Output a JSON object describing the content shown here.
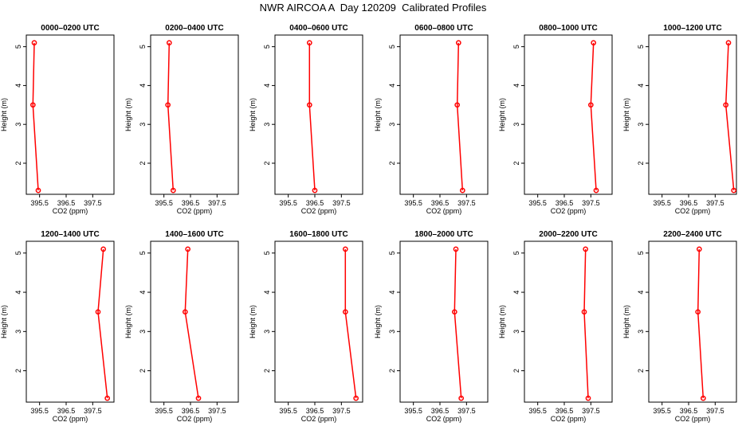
{
  "title": "NWR AIRCOA A  Day 120209  Calibrated Profiles",
  "axes": {
    "xlabel": "CO2 (ppm)",
    "ylabel": "Height (m)",
    "xticks": [
      "395.5",
      "396.5",
      "397.5"
    ],
    "yticks": [
      "2",
      "3",
      "4",
      "5"
    ],
    "xlim": [
      395.0,
      398.3
    ],
    "ylim": [
      1.2,
      5.3
    ]
  },
  "colors": {
    "series": "#ff0000",
    "axis": "#000000"
  },
  "chart_data": [
    {
      "type": "line",
      "title": "0000–0200 UTC",
      "points": [
        {
          "x": 395.3,
          "y": 5.1
        },
        {
          "x": 395.25,
          "y": 3.5
        },
        {
          "x": 395.45,
          "y": 1.3
        }
      ]
    },
    {
      "type": "line",
      "title": "0200–0400 UTC",
      "points": [
        {
          "x": 395.7,
          "y": 5.1
        },
        {
          "x": 395.65,
          "y": 3.5
        },
        {
          "x": 395.85,
          "y": 1.3
        }
      ]
    },
    {
      "type": "line",
      "title": "0400–0600 UTC",
      "points": [
        {
          "x": 396.3,
          "y": 5.1
        },
        {
          "x": 396.3,
          "y": 3.5
        },
        {
          "x": 396.5,
          "y": 1.3
        }
      ]
    },
    {
      "type": "line",
      "title": "0600–0800 UTC",
      "points": [
        {
          "x": 397.2,
          "y": 5.1
        },
        {
          "x": 397.15,
          "y": 3.5
        },
        {
          "x": 397.35,
          "y": 1.3
        }
      ]
    },
    {
      "type": "line",
      "title": "0800–1000 UTC",
      "points": [
        {
          "x": 397.6,
          "y": 5.1
        },
        {
          "x": 397.5,
          "y": 3.5
        },
        {
          "x": 397.7,
          "y": 1.3
        }
      ]
    },
    {
      "type": "line",
      "title": "1000–1200 UTC",
      "points": [
        {
          "x": 398.0,
          "y": 5.1
        },
        {
          "x": 397.9,
          "y": 3.5
        },
        {
          "x": 398.2,
          "y": 1.3
        }
      ]
    },
    {
      "type": "line",
      "title": "1200–1400 UTC",
      "points": [
        {
          "x": 397.9,
          "y": 5.1
        },
        {
          "x": 397.7,
          "y": 3.5
        },
        {
          "x": 398.05,
          "y": 1.3
        }
      ]
    },
    {
      "type": "line",
      "title": "1400–1600 UTC",
      "points": [
        {
          "x": 396.4,
          "y": 5.1
        },
        {
          "x": 396.3,
          "y": 3.5
        },
        {
          "x": 396.8,
          "y": 1.3
        }
      ]
    },
    {
      "type": "line",
      "title": "1600–1800 UTC",
      "points": [
        {
          "x": 397.65,
          "y": 5.1
        },
        {
          "x": 397.65,
          "y": 3.5
        },
        {
          "x": 398.05,
          "y": 1.3
        }
      ]
    },
    {
      "type": "line",
      "title": "1800–2000 UTC",
      "points": [
        {
          "x": 397.1,
          "y": 5.1
        },
        {
          "x": 397.05,
          "y": 3.5
        },
        {
          "x": 397.3,
          "y": 1.3
        }
      ]
    },
    {
      "type": "line",
      "title": "2000–2200 UTC",
      "points": [
        {
          "x": 397.3,
          "y": 5.1
        },
        {
          "x": 397.25,
          "y": 3.5
        },
        {
          "x": 397.4,
          "y": 1.3
        }
      ]
    },
    {
      "type": "line",
      "title": "2200–2400 UTC",
      "points": [
        {
          "x": 396.9,
          "y": 5.1
        },
        {
          "x": 396.85,
          "y": 3.5
        },
        {
          "x": 397.05,
          "y": 1.3
        }
      ]
    }
  ]
}
